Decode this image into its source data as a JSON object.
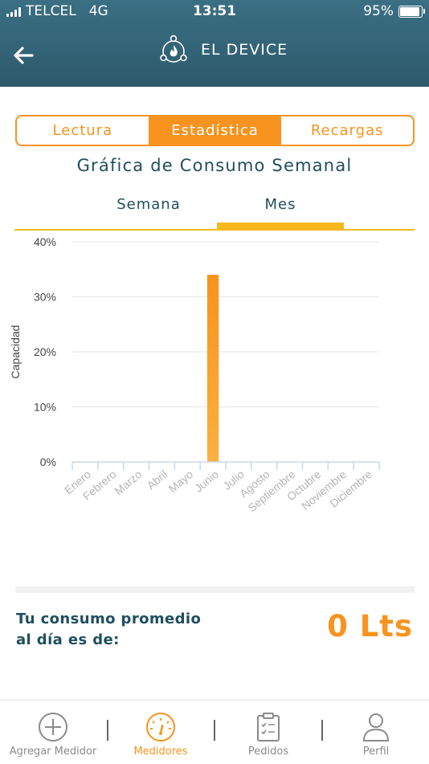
{
  "status_bar": {
    "carrier": "TELCEL",
    "network": "4G",
    "time": "13:51",
    "battery": "95%"
  },
  "header": {
    "title": "EL DEVICE",
    "logo_icon": "flame-network-icon",
    "back_icon": "back-arrow-icon"
  },
  "segment": {
    "tabs": [
      "Lectura",
      "Estadística",
      "Recargas"
    ],
    "active": "Estadística"
  },
  "chart_title": "Gráfica de Consumo Semanal",
  "period_tabs": {
    "week": "Semana",
    "month": "Mes",
    "active": "Mes"
  },
  "chart_data": {
    "type": "bar",
    "categories": [
      "Enero",
      "Febrero",
      "Marzo",
      "Abril",
      "Mayo",
      "Junio",
      "Julio",
      "Agosto",
      "Septiembre",
      "Octubre",
      "Noviembre",
      "Diciembre"
    ],
    "values": [
      0,
      0,
      0,
      0,
      0,
      34,
      0,
      0,
      0,
      0,
      0,
      0
    ],
    "ylabel": "Capacidad",
    "ylim": [
      0,
      40
    ],
    "yticks": [
      "0%",
      "10%",
      "20%",
      "30%",
      "40%"
    ],
    "grid": true,
    "bar_color": "#f7931e"
  },
  "summary": {
    "label_line1": "Tu consumo promedio",
    "label_line2": "al día es de:",
    "value": "0 Lts"
  },
  "bottom_nav": {
    "items": [
      {
        "label": "Agregar Medidor",
        "icon": "plus-circle-icon"
      },
      {
        "label": "Medidores",
        "icon": "gauge-icon"
      },
      {
        "label": "Pedidos",
        "icon": "clipboard-icon"
      },
      {
        "label": "Perfil",
        "icon": "user-icon"
      }
    ],
    "active": "Medidores"
  },
  "colors": {
    "accent": "#f7931e",
    "header": "#2d5a6c",
    "title_text": "#1f4e5f"
  }
}
